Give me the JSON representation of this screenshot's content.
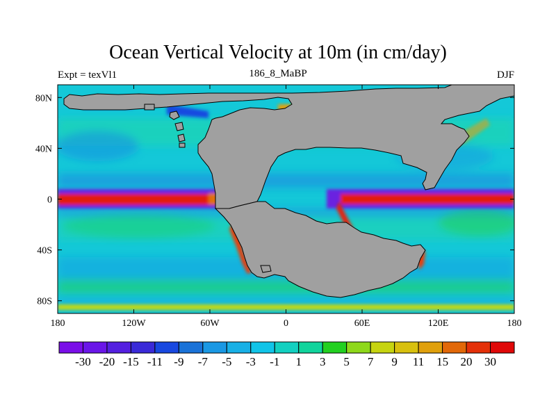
{
  "chart_data": {
    "type": "heatmap",
    "title": "Ocean Vertical Velocity at 10m (in cm/day)",
    "left_string": "Expt = texVl1",
    "center_string": "186_8_MaBP",
    "right_string": "DJF",
    "x_range": [
      -180,
      180
    ],
    "y_range": [
      -90,
      90
    ],
    "x_ticks": [
      {
        "value": -180,
        "label": "180"
      },
      {
        "value": -120,
        "label": "120W"
      },
      {
        "value": -60,
        "label": "60W"
      },
      {
        "value": 0,
        "label": "0"
      },
      {
        "value": 60,
        "label": "60E"
      },
      {
        "value": 120,
        "label": "120E"
      },
      {
        "value": 180,
        "label": "180"
      }
    ],
    "y_ticks": [
      {
        "value": 80,
        "label": "80N"
      },
      {
        "value": 40,
        "label": "40N"
      },
      {
        "value": 0,
        "label": "0"
      },
      {
        "value": -40,
        "label": "40S"
      },
      {
        "value": -80,
        "label": "80S"
      }
    ],
    "colorbar": {
      "labels": [
        "-30",
        "-20",
        "-15",
        "-11",
        "-9",
        "-7",
        "-5",
        "-3",
        "-1",
        "1",
        "3",
        "5",
        "7",
        "9",
        "11",
        "15",
        "20",
        "30"
      ],
      "colors": [
        "#7a0ee8",
        "#6a16e8",
        "#5420e0",
        "#3a2ad8",
        "#1848e0",
        "#1a72d8",
        "#1a98e4",
        "#18b0e6",
        "#10c4e8",
        "#12d0c0",
        "#10d49c",
        "#22d020",
        "#8ed81a",
        "#c6d410",
        "#d8c00e",
        "#e0a00c",
        "#e26808",
        "#e43008",
        "#e00808"
      ]
    },
    "land_color": "#a0a0a0",
    "background_ocean_color": "#14c8d8"
  }
}
